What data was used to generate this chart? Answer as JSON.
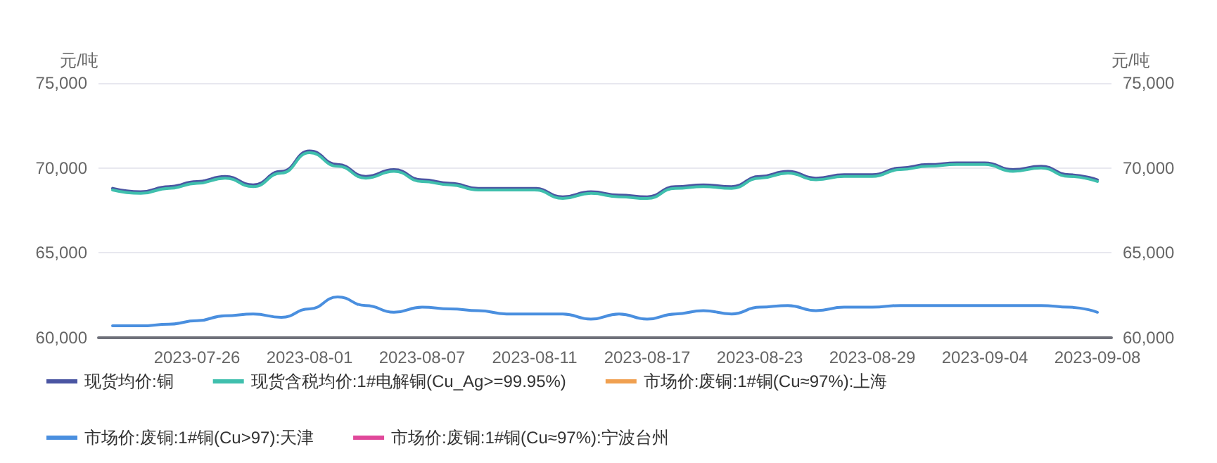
{
  "chart_data": {
    "type": "line",
    "ylabel": "元/吨",
    "y2label": "元/吨",
    "categories": [
      null,
      null,
      null,
      "2023-07-26",
      null,
      null,
      null,
      "2023-08-01",
      null,
      null,
      null,
      "2023-08-07",
      null,
      null,
      null,
      "2023-08-11",
      null,
      null,
      null,
      "2023-08-17",
      null,
      null,
      null,
      "2023-08-23",
      null,
      null,
      null,
      "2023-08-29",
      null,
      null,
      null,
      "2023-09-04",
      null,
      null,
      null,
      "2023-09-08"
    ],
    "series": [
      {
        "name": "现货均价:铜",
        "color": "#4a55a2",
        "values": [
          68800,
          68600,
          68900,
          69200,
          69500,
          69000,
          69800,
          71000,
          70200,
          69500,
          69900,
          69300,
          69100,
          68800,
          68800,
          68800,
          68300,
          68600,
          68400,
          68300,
          68900,
          69000,
          68900,
          69500,
          69800,
          69400,
          69600,
          69600,
          70000,
          70200,
          70300,
          70300,
          69900,
          70100,
          69600,
          69300
        ]
      },
      {
        "name": "现货含税均价:1#电解铜(Cu_Ag>=99.95%)",
        "color": "#3fbfad",
        "values": [
          68700,
          68500,
          68800,
          69100,
          69400,
          68900,
          69700,
          70900,
          70100,
          69400,
          69800,
          69200,
          69000,
          68700,
          68700,
          68700,
          68200,
          68500,
          68300,
          68200,
          68800,
          68900,
          68800,
          69400,
          69700,
          69300,
          69500,
          69500,
          69900,
          70100,
          70200,
          70200,
          69800,
          70000,
          69500,
          69200
        ]
      },
      {
        "name": "市场价:废铜:1#铜(Cu≈97%):上海",
        "color": "#f0a050",
        "values": [
          null,
          null,
          null,
          null,
          null,
          null,
          null,
          null,
          null,
          null,
          null,
          null,
          null,
          null,
          null,
          null,
          null,
          null,
          null,
          null,
          null,
          null,
          null,
          null,
          null,
          null,
          null,
          null,
          null,
          null,
          null,
          null,
          null,
          null,
          null,
          null
        ]
      },
      {
        "name": "市场价:废铜:1#铜(Cu>97):天津",
        "color": "#4a8fdf",
        "values": [
          60700,
          60700,
          60800,
          61000,
          61300,
          61400,
          61200,
          61700,
          62400,
          61900,
          61500,
          61800,
          61700,
          61600,
          61400,
          61400,
          61400,
          61100,
          61400,
          61100,
          61400,
          61600,
          61400,
          61800,
          61900,
          61600,
          61800,
          61800,
          61900,
          61900,
          61900,
          61900,
          61900,
          61900,
          61800,
          61500
        ]
      },
      {
        "name": "市场价:废铜:1#铜(Cu≈97%):宁波台州",
        "color": "#e0489a",
        "values": [
          null,
          null,
          null,
          null,
          null,
          null,
          null,
          null,
          null,
          null,
          null,
          null,
          null,
          null,
          null,
          null,
          null,
          null,
          null,
          null,
          null,
          null,
          null,
          null,
          null,
          null,
          null,
          null,
          null,
          null,
          null,
          null,
          null,
          null,
          null,
          null
        ]
      }
    ],
    "ylim": [
      60000,
      75000
    ],
    "yticks": [
      {
        "value": 60000,
        "label": "60,000"
      },
      {
        "value": 65000,
        "label": "65,000"
      },
      {
        "value": 70000,
        "label": "70,000"
      },
      {
        "value": 75000,
        "label": "75,000"
      }
    ],
    "y2lim": [
      60000,
      75000
    ],
    "y2ticks": [
      {
        "value": 60000,
        "label": "60,000"
      },
      {
        "value": 65000,
        "label": "65,000"
      },
      {
        "value": 70000,
        "label": "70,000"
      },
      {
        "value": 75000,
        "label": "75,000"
      }
    ],
    "grid": "y",
    "legend": "bottom",
    "marker": "none",
    "line_style": "solid"
  }
}
